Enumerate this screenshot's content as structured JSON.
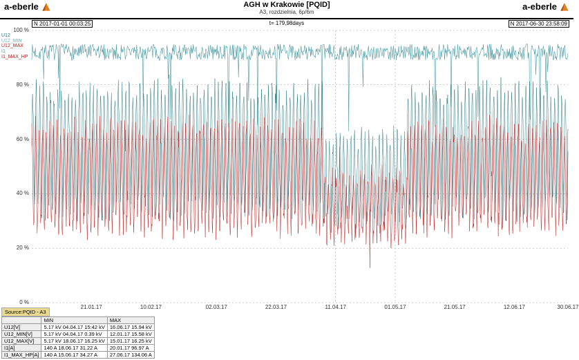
{
  "brand": "a-eberle",
  "title": "AGH w Krakowie [PQID]",
  "subtitle": "A3, rozdzielnia, 6p/6m",
  "ts_left": "N 2017-01-01 00:03:25",
  "ts_center": "t= 179,98days",
  "ts_right": "N 2017-06-30 23:58:09",
  "legend": [
    {
      "label": "U12",
      "color": "#2a7a82"
    },
    {
      "label": "U12_MIN",
      "color": "#6bb8c0"
    },
    {
      "label": "U12_MAX",
      "color": "#c02020"
    },
    {
      "label": "I1",
      "color": "#4a9aa2"
    },
    {
      "label": "I1_MAX_HP",
      "color": "#b01818"
    }
  ],
  "chart": {
    "type": "line",
    "background_color": "#ffffff",
    "grid_color": "#999999",
    "grid_dash": "2,3",
    "ylim": [
      0,
      100
    ],
    "ytick_step": 20,
    "ylabel_suffix": " %",
    "xlim_days": [
      0,
      180
    ],
    "xticks": [
      {
        "pos": 20,
        "label": "21.01.17"
      },
      {
        "pos": 40,
        "label": "10.02.17"
      },
      {
        "pos": 62,
        "label": "02.03.17"
      },
      {
        "pos": 82,
        "label": "22.03.17"
      },
      {
        "pos": 102,
        "label": "11.04.17"
      },
      {
        "pos": 122,
        "label": "01.05.17"
      },
      {
        "pos": 142,
        "label": "21.05.17"
      },
      {
        "pos": 162,
        "label": "12.06.17"
      },
      {
        "pos": 180,
        "label": "30.06.17"
      }
    ],
    "vlines": [
      102,
      122
    ],
    "series": {
      "top_band": {
        "color": "#4a9aa2",
        "mean": 92,
        "amp": 3,
        "drop_depth": 25,
        "width": 0.6
      },
      "teal": {
        "color": "#2a7a82",
        "base_low": 34,
        "base_high": 78,
        "width": 0.5
      },
      "red": {
        "color": "#c02020",
        "base_low": 28,
        "base_high": 64,
        "width": 0.5
      }
    }
  },
  "table": {
    "source": "Source:PQID - A3",
    "headers": [
      "",
      "MIN",
      "MAX"
    ],
    "rows": [
      [
        "U12[V]",
        "5.17 kV   04.04.17 15:42 kV",
        "16.06.17 15.94 kV"
      ],
      [
        "U12_MIN[V]",
        "5.17 kV   04.04.17 0.39 kV",
        "12.01.17 15.58 kV"
      ],
      [
        "U12_MAX[V]",
        "5.17 kV   18.06.17 16.25 kV",
        "15.01.17 16.25 kV"
      ],
      [
        "I1[A]",
        "140 A   18.06.17 31.22 A",
        "20.01.17 96.97 A"
      ],
      [
        "I1_MAX_HP[A]",
        "140 A   15.06.17 34.27 A",
        "27.06.17 134.06 A"
      ]
    ]
  }
}
